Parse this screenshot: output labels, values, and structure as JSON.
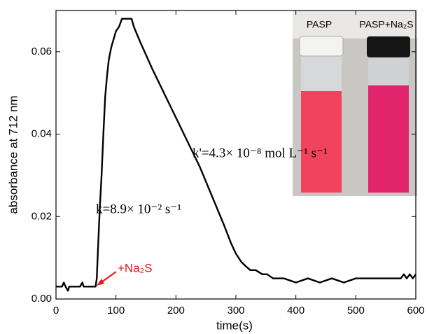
{
  "chart_data": {
    "type": "line",
    "x_label": "time(s)",
    "y_label": "absorbance at 712 nm",
    "x": [
      0,
      10,
      13,
      16,
      20,
      22,
      30,
      40,
      44,
      46,
      50,
      60,
      66,
      68,
      70,
      73,
      76,
      79,
      82,
      85,
      88,
      92,
      96,
      100,
      105,
      110,
      115,
      126,
      130,
      140,
      160,
      180,
      200,
      220,
      240,
      260,
      280,
      292,
      300,
      309,
      316,
      324,
      333,
      344,
      352,
      362,
      380,
      400,
      420,
      440,
      460,
      480,
      500,
      520,
      540,
      560,
      575,
      580,
      585,
      590,
      595,
      600
    ],
    "series": [
      {
        "color": "#000000",
        "values": [
          0.003,
          0.003,
          0.004,
          0.003,
          0.002,
          0.003,
          0.003,
          0.003,
          0.004,
          0.003,
          0.003,
          0.003,
          0.003,
          0.005,
          0.012,
          0.022,
          0.03,
          0.04,
          0.049,
          0.054,
          0.058,
          0.061,
          0.063,
          0.065,
          0.066,
          0.068,
          0.068,
          0.068,
          0.066,
          0.0625,
          0.056,
          0.05,
          0.044,
          0.038,
          0.032,
          0.025,
          0.018,
          0.0135,
          0.011,
          0.009,
          0.008,
          0.007,
          0.007,
          0.006,
          0.006,
          0.005,
          0.005,
          0.004,
          0.005,
          0.004,
          0.005,
          0.004,
          0.005,
          0.005,
          0.005,
          0.005,
          0.005,
          0.006,
          0.005,
          0.006,
          0.005,
          0.006
        ]
      }
    ],
    "xlim": [
      0,
      600
    ],
    "xticks": [
      0,
      100,
      200,
      300,
      400,
      500,
      600
    ],
    "ylim": [
      0,
      0.07
    ],
    "yticks": [
      {
        "value": 0,
        "label": "0.00"
      },
      0.02,
      0.04,
      0.06
    ],
    "annotations": [
      "k'=4.3× 10⁻⁸ mol L⁻¹ s⁻¹",
      "k=8.9× 10⁻² s⁻¹",
      "+Na₂S"
    ],
    "inset_labels": [
      "PASP",
      "PASP+Na₂S"
    ]
  }
}
